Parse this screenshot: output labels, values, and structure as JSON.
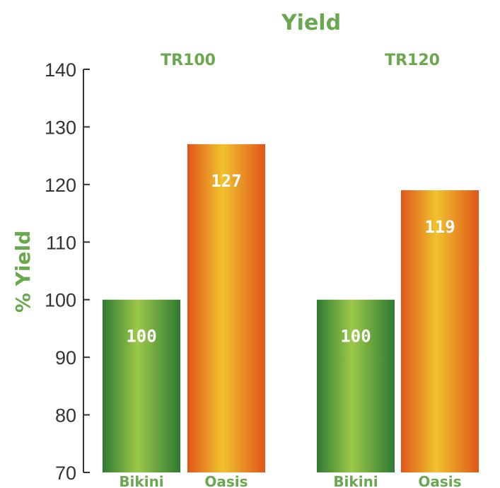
{
  "chart_data": {
    "type": "bar",
    "title": "Yield",
    "ylabel": "% Yield",
    "xlabel": "",
    "ylim": [
      70,
      140
    ],
    "yticks": [
      70,
      80,
      90,
      100,
      110,
      120,
      130,
      140
    ],
    "grid": false,
    "groups": [
      {
        "label": "TR100",
        "bars": [
          {
            "category": "Bikini",
            "value": 100,
            "label": "100",
            "color": "green"
          },
          {
            "category": "Oasis",
            "value": 127,
            "label": "127",
            "color": "orange"
          }
        ]
      },
      {
        "label": "TR120",
        "bars": [
          {
            "category": "Bikini",
            "value": 100,
            "label": "100",
            "color": "green"
          },
          {
            "category": "Oasis",
            "value": 119,
            "label": "119",
            "color": "orange"
          }
        ]
      }
    ]
  },
  "colors": {
    "accent_text": "#6aa84f",
    "green_dark": "#2f7a32",
    "green_light": "#9cc84a",
    "orange_dark": "#e0561a",
    "orange_light": "#f0c22e",
    "axis": "#333333"
  }
}
